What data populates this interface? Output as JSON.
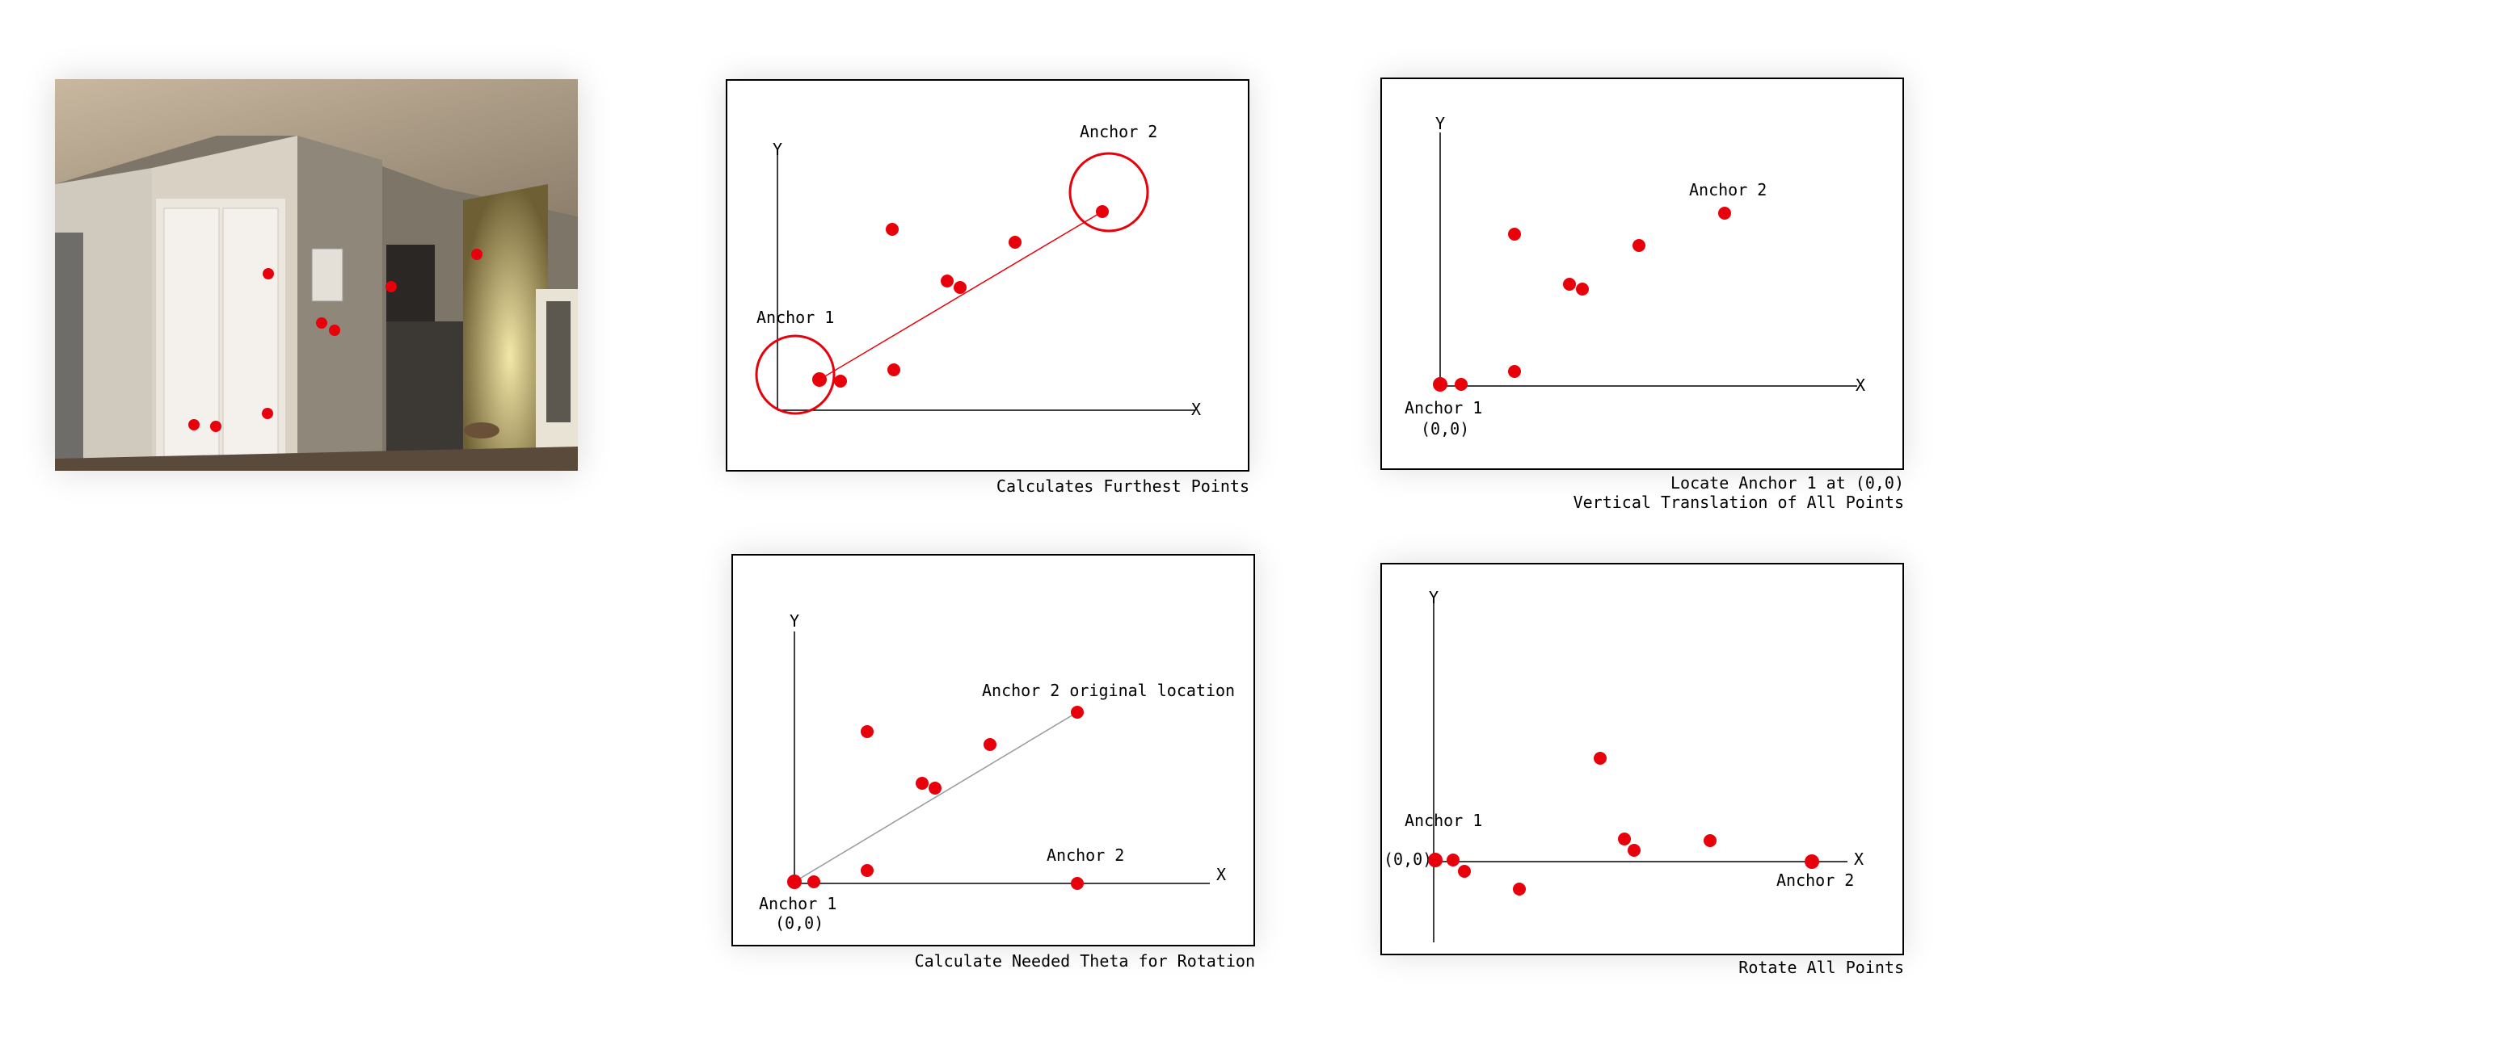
{
  "colors": {
    "point": "#e8000b",
    "axis": "#000000",
    "connector": "#999999"
  },
  "panels": {
    "p1": {
      "caption": "Calculates Furthest Points",
      "axis_x": "X",
      "axis_y": "Y",
      "anchor1": "Anchor 1",
      "anchor2": "Anchor 2"
    },
    "p2": {
      "caption_line1": "Locate Anchor 1 at (0,0)",
      "caption_line2": "Vertical Translation of All Points",
      "axis_x": "X",
      "axis_y": "Y",
      "anchor1": "Anchor 1",
      "origin": "(0,0)",
      "anchor2": "Anchor 2"
    },
    "p3": {
      "caption": "Calculate Needed Theta for Rotation",
      "axis_x": "X",
      "axis_y": "Y",
      "anchor1": "Anchor 1",
      "origin": "(0,0)",
      "anchor2_original": "Anchor 2 original location",
      "anchor2": "Anchor 2"
    },
    "p4": {
      "caption": "Rotate All Points",
      "axis_x": "X",
      "axis_y": "Y",
      "anchor1": "Anchor 1",
      "origin": "(0,0)",
      "anchor2": "Anchor 2"
    }
  }
}
